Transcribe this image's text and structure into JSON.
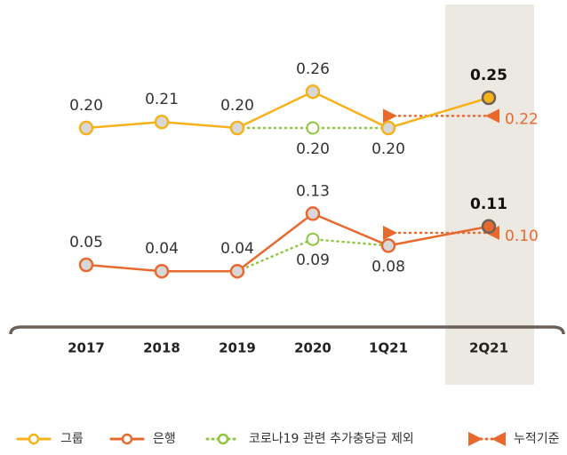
{
  "chart_data": {
    "type": "line",
    "categories": [
      "2017",
      "2018",
      "2019",
      "2020",
      "1Q21",
      "2Q21"
    ],
    "highlight_category": "2Q21",
    "series": [
      {
        "name": "그룹",
        "color": "#f5b21b",
        "line_style": "solid",
        "marker": "circle",
        "values": [
          [
            0.2,
            0.21,
            0.2,
            0.26,
            0.2,
            0.25
          ],
          [
            null,
            null,
            null,
            null,
            null,
            null
          ]
        ],
        "value_labels": [
          [
            "0.20",
            "0.21",
            "0.20",
            "0.26",
            "0.20",
            "0.25"
          ],
          [
            null,
            null,
            null,
            null,
            null,
            null
          ]
        ]
      },
      {
        "name": "은행",
        "color": "#e8692e",
        "line_style": "solid",
        "marker": "circle",
        "values": [
          [
            null,
            null,
            null,
            null,
            null,
            null
          ],
          [
            0.05,
            0.04,
            0.04,
            0.13,
            0.08,
            0.11
          ]
        ],
        "value_labels": [
          [
            null,
            null,
            null,
            null,
            null,
            null
          ],
          [
            "0.05",
            "0.04",
            "0.04",
            "0.13",
            "0.08",
            "0.11"
          ]
        ]
      },
      {
        "name": "코로나19 관련 추가충당금 제외",
        "color": "#8dc63f",
        "line_style": "dotted",
        "marker": "circle",
        "values": [
          [
            null,
            null,
            0.2,
            0.2,
            0.2,
            null
          ],
          [
            null,
            null,
            0.04,
            0.09,
            0.08,
            null
          ]
        ],
        "value_labels": [
          [
            null,
            null,
            null,
            "0.20",
            null,
            null
          ],
          [
            null,
            null,
            null,
            "0.09",
            null,
            null
          ]
        ]
      },
      {
        "name": "누적기준",
        "color": "#e8692e",
        "line_style": "dotted",
        "marker": "triangle",
        "values": [
          [
            null,
            null,
            null,
            null,
            0.22,
            0.22
          ],
          [
            null,
            null,
            null,
            null,
            0.1,
            0.1
          ]
        ],
        "value_labels": [
          [
            null,
            null,
            null,
            null,
            null,
            "0.22"
          ],
          [
            null,
            null,
            null,
            null,
            null,
            "0.10"
          ]
        ]
      }
    ]
  }
}
